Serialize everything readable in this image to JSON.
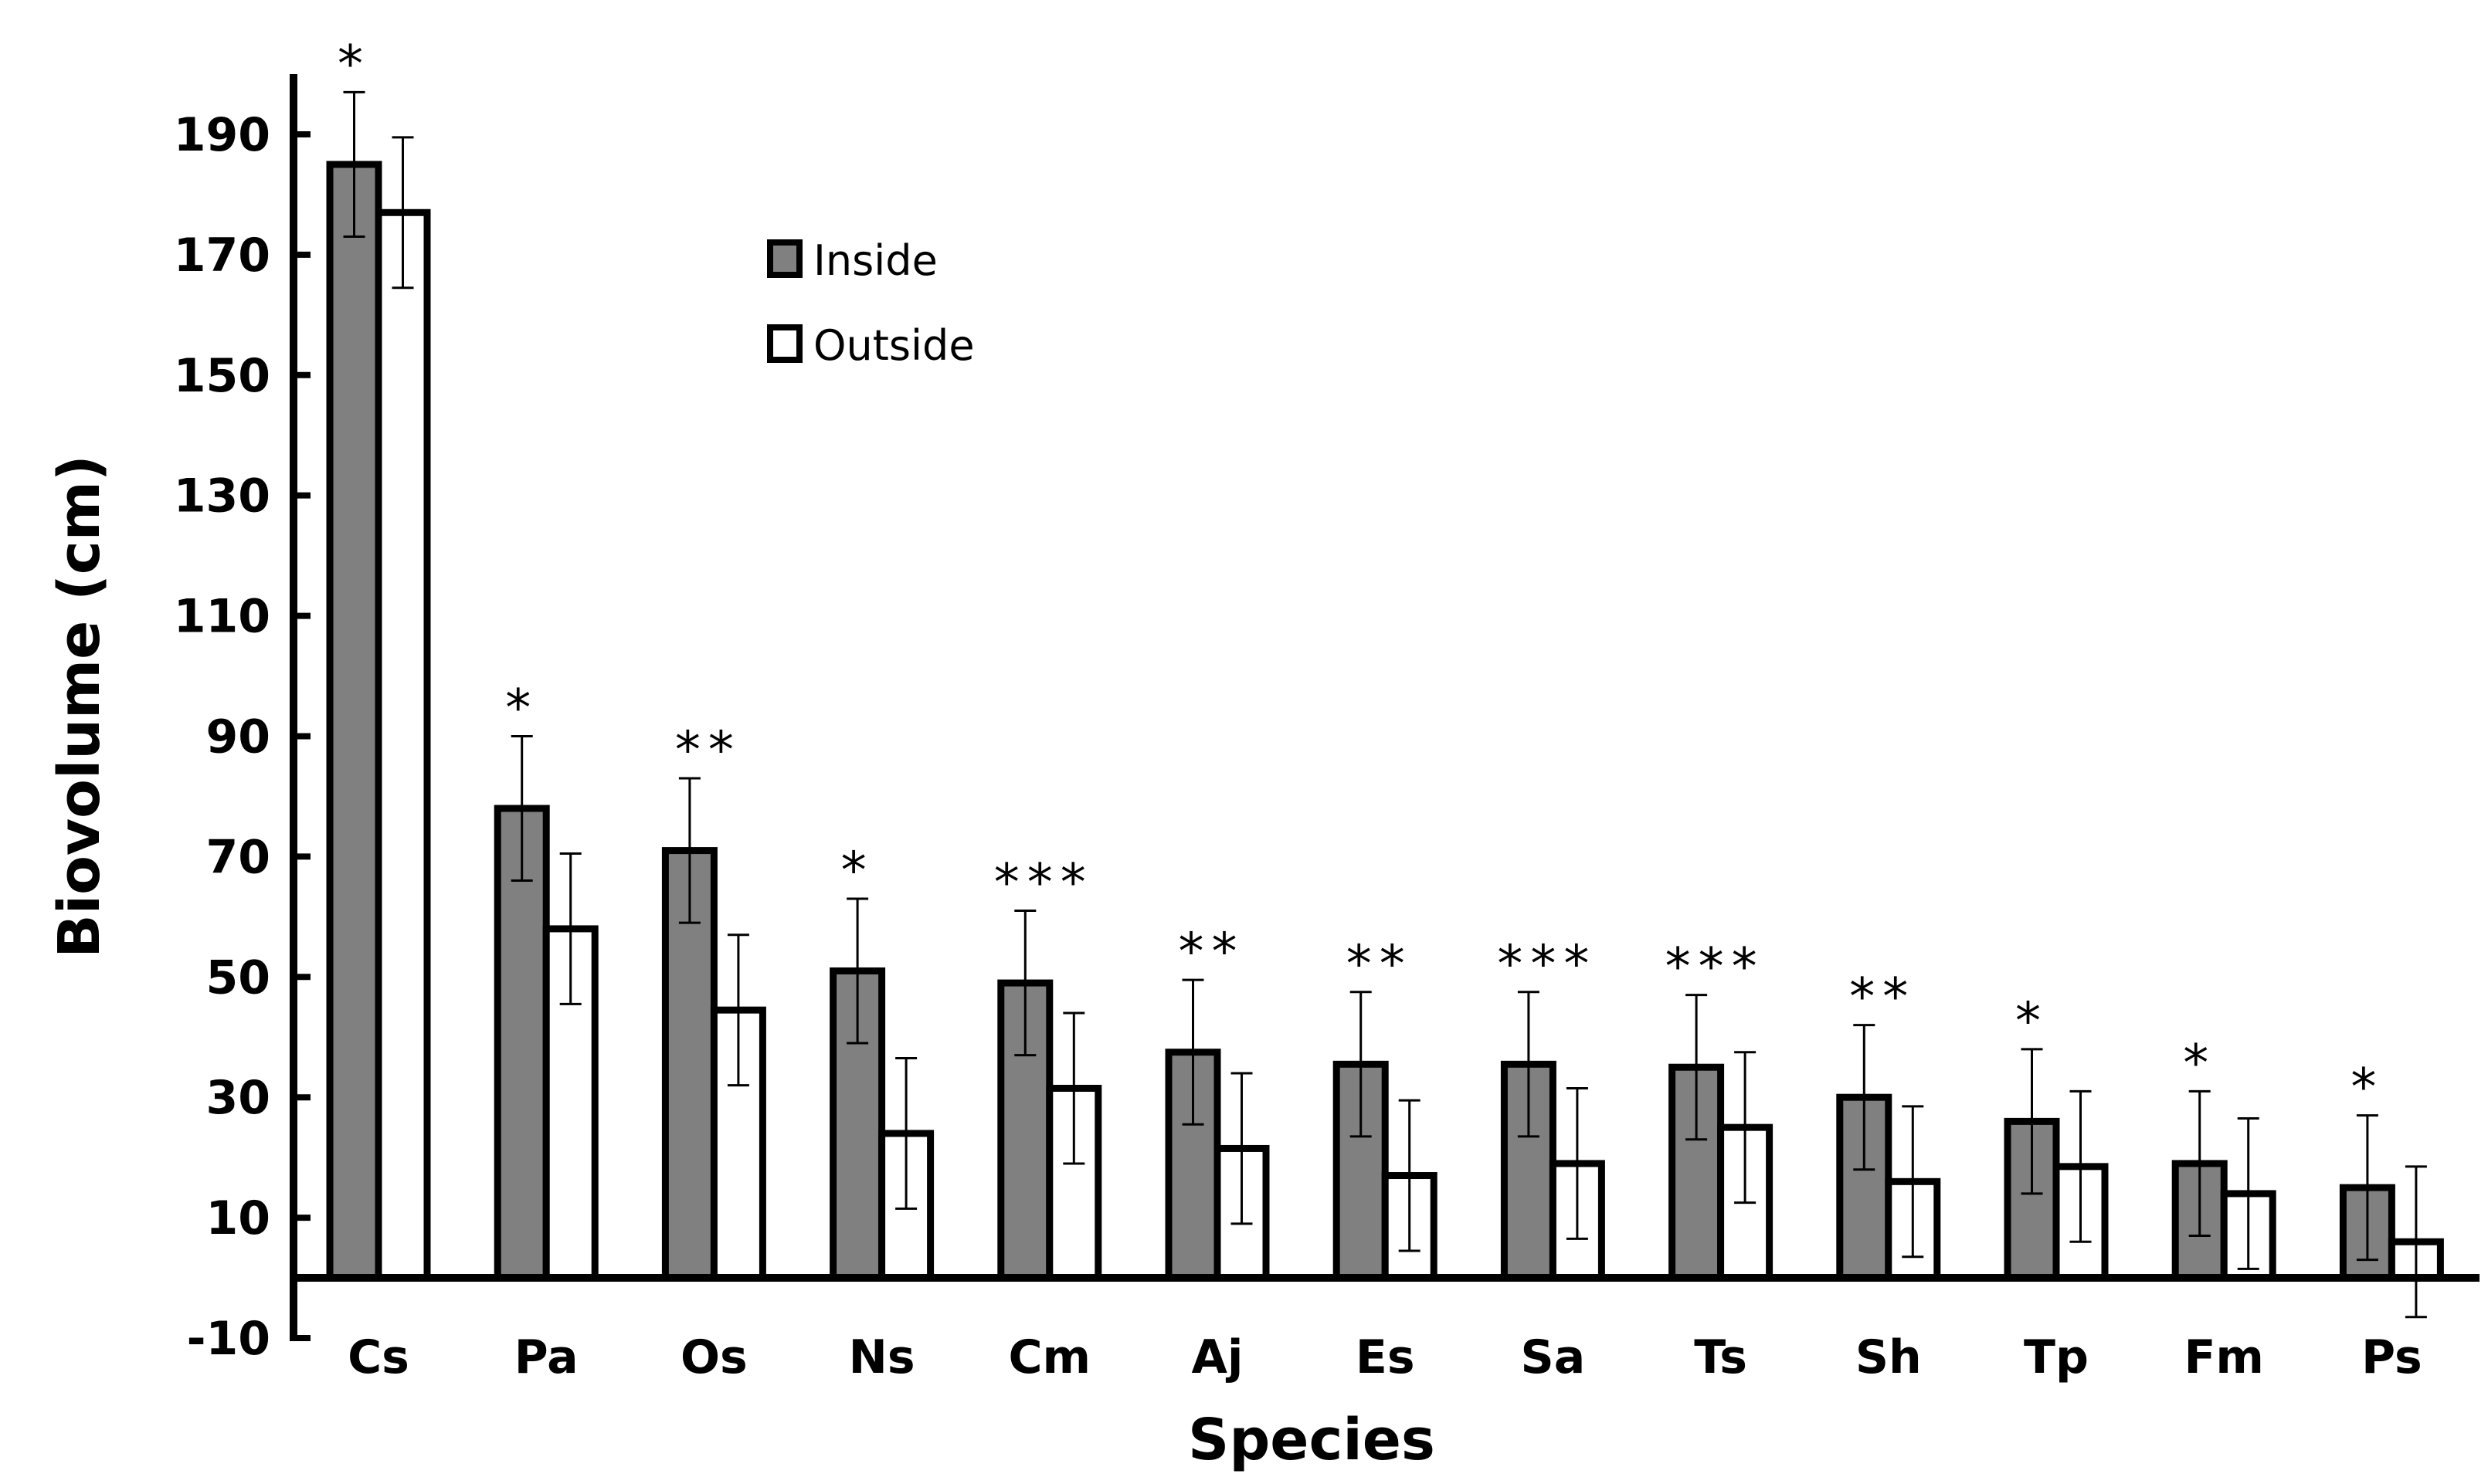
{
  "chart_data": {
    "type": "bar",
    "title": "",
    "xlabel": "Species",
    "ylabel": "Biovolume (cm)",
    "ylim": [
      -10,
      200
    ],
    "yticks": [
      -10,
      10,
      30,
      50,
      70,
      90,
      110,
      130,
      150,
      170,
      190
    ],
    "ytick_labels": [
      "-10",
      "10",
      "30",
      "50",
      "70",
      "90",
      "110",
      "130",
      "150",
      "170",
      "190"
    ],
    "categories": [
      "Cs",
      "Pa",
      "Os",
      "Ns",
      "Cm",
      "Aj",
      "Es",
      "Sa",
      "Ts",
      "Sh",
      "Tp",
      "Fm",
      "Ps"
    ],
    "series": [
      {
        "name": "Inside",
        "color": "#808080",
        "values": [
          185,
          78,
          71,
          51,
          49,
          37.5,
          35.5,
          35.5,
          35,
          30,
          26,
          19,
          15
        ],
        "errors": [
          12,
          12,
          12,
          12,
          12,
          12,
          12,
          12,
          12,
          12,
          12,
          12,
          12
        ]
      },
      {
        "name": "Outside",
        "color": "#ffffff",
        "values": [
          177,
          58,
          44.5,
          24,
          31.5,
          21.5,
          17,
          19,
          25,
          16,
          18.5,
          14,
          6
        ],
        "errors": [
          12.5,
          12.5,
          12.5,
          12.5,
          12.5,
          12.5,
          12.5,
          12.5,
          12.5,
          12.5,
          12.5,
          12.5,
          12.5
        ]
      }
    ],
    "significance": [
      "*",
      "*",
      "**",
      "*",
      "***",
      "**",
      "**",
      "***",
      "***",
      "**",
      "*",
      "*",
      "*"
    ],
    "legend_position": "top-left",
    "grid": false
  }
}
